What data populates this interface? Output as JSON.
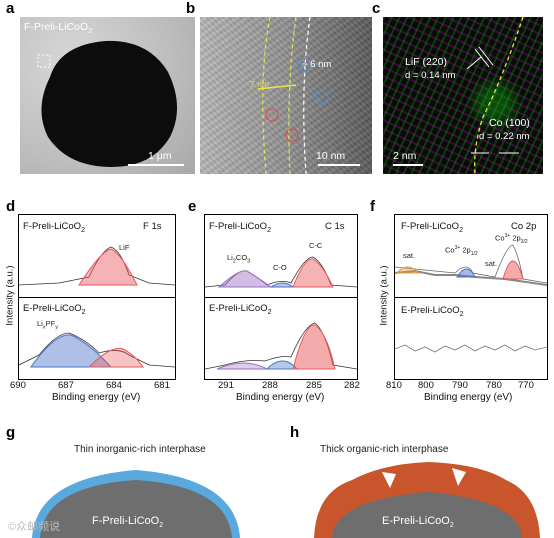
{
  "panel_labels": {
    "a": "a",
    "b": "b",
    "c": "c",
    "d": "d",
    "e": "e",
    "f": "f",
    "g": "g",
    "h": "h"
  },
  "panel_a": {
    "sample": "F-Preli-LiCoO",
    "sample_sub": "2",
    "scale": "1 μm"
  },
  "panel_b": {
    "thickness": "~ 6 nm",
    "scale": "10 nm",
    "left_mark": "7 nm"
  },
  "panel_c": {
    "lif_label": "LiF (220)",
    "lif_d": "d = 0.14 nm",
    "co_label": "Co (100)",
    "co_d": "d = 0.22 nm",
    "scale": "2 nm"
  },
  "panel_d": {
    "element": "F 1s",
    "top_sample": "F-Preli-LiCoO",
    "top_sample_sub": "2",
    "bottom_sample": "E-Preli-LiCoO",
    "bottom_sample_sub": "2",
    "peak_top": "LiF",
    "peak_bottom_main": "Li",
    "peak_bottom_sub1": "x",
    "peak_bottom_mid": "PF",
    "peak_bottom_sub2": "y",
    "ticks": [
      "690",
      "687",
      "684",
      "681"
    ],
    "xlabel": "Binding energy (eV)",
    "ylabel": "Intensity (a.u.)"
  },
  "panel_e": {
    "element": "C 1s",
    "top_sample": "F-Preli-LiCoO",
    "top_sample_sub": "2",
    "bottom_sample": "E-Preli-LiCoO",
    "bottom_sample_sub": "2",
    "peak_li2co3_main": "Li",
    "peak_li2co3_sub1": "2",
    "peak_li2co3_mid": "CO",
    "peak_li2co3_sub2": "3",
    "peak_co": "C-O",
    "peak_cc": "C-C",
    "ticks": [
      "291",
      "288",
      "285",
      "282"
    ],
    "xlabel": "Binding energy (eV)"
  },
  "panel_f": {
    "element": "Co 2p",
    "top_sample": "F-Preli-LiCoO",
    "top_sample_sub": "2",
    "bottom_sample": "E-Preli-LiCoO",
    "bottom_sample_sub": "2",
    "peak_sat1": "sat.",
    "peak_sat2": "sat.",
    "peak_co12_main": "Co",
    "peak_co12_sup": "3+",
    "peak_co12_mid": " 2p",
    "peak_co12_sub": "1/2",
    "peak_co32_main": "Co",
    "peak_co32_sup": "3+",
    "peak_co32_mid": " 2p",
    "peak_co32_sub": "3/2",
    "ticks": [
      "810",
      "800",
      "790",
      "780",
      "770"
    ],
    "xlabel": "Binding energy (eV)",
    "ylabel": "Intensity (a.u.)"
  },
  "panel_g": {
    "title": "Thin inorganic-rich interphase",
    "core": "F-Preli-LiCoO",
    "core_sub": "2"
  },
  "panel_h": {
    "title": "Thick organic-rich interphase",
    "core": "E-Preli-LiCoO",
    "core_sub": "2"
  },
  "watermark": "©众邮频说",
  "colors": {
    "red_peak": "#e8575a",
    "blue_peak": "#4b74c6",
    "purple_peak": "#9b6fc4",
    "orange_peak": "#e59a3a",
    "shell_blue": "#5aa9dd",
    "shell_orange": "#c8552b",
    "core_gray": "#6e6e6e"
  }
}
